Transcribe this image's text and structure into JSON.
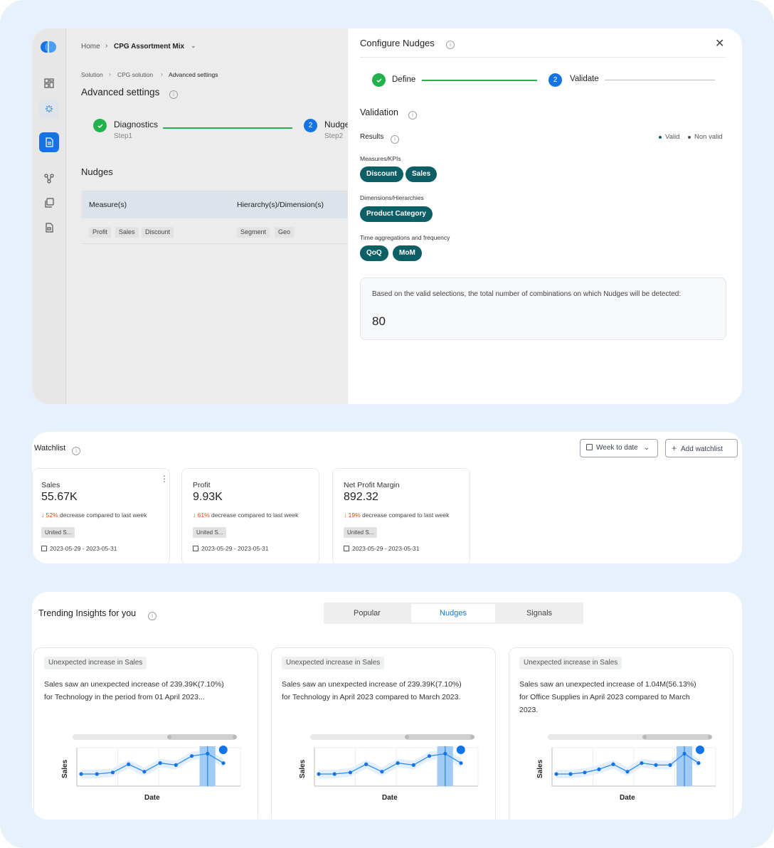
{
  "advanced": {
    "home": "Home",
    "project": "CPG Assortment Mix",
    "breadcrumb": [
      "Solution",
      "CPG solution",
      "Advanced settings"
    ],
    "page_title": "Advanced settings",
    "step1_title": "Diagnostics",
    "step1_sub": "Step1",
    "step2_title": "Nudge",
    "step2_num": "2",
    "step2_sub": "Step2",
    "section_title": "Nudges",
    "col_measure": "Measure(s)",
    "col_hier": "Hierarchy(s)/Dimension(s)",
    "measures": [
      "Profit",
      "Sales",
      "Discount"
    ],
    "dimensions": [
      "Segment",
      "Geo"
    ]
  },
  "drawer": {
    "title": "Configure Nudges",
    "step1": "Define",
    "step2_num": "2",
    "step2": "Validate",
    "validation_title": "Validation",
    "results_label": "Results",
    "legend_valid": "Valid",
    "legend_nonvalid": "Non valid",
    "measures_label": "Measures/KPIs",
    "measures": [
      "Discount",
      "Sales"
    ],
    "dimensions_label": "Dimensions/Hierarchies",
    "dimensions": [
      "Product Category"
    ],
    "time_label": "Time aggregations and frequency",
    "time": [
      "QoQ",
      "MoM"
    ],
    "summary_text": "Based on the valid selections, the total number of combinations on which Nudges will be detected:",
    "summary_value": "80",
    "colors": {
      "pill": "#0d5f66",
      "accent": "#1474e6",
      "success": "#22b14c"
    }
  },
  "watchlist": {
    "title": "Watchlist",
    "range_button": "Week to date",
    "add_button": "Add watchlist",
    "cards": [
      {
        "label": "Sales",
        "value": "55.67K",
        "pct": "52%",
        "change": "decrease compared to last week",
        "region": "United S...",
        "dates": "2023-05-29 - 2023-05-31"
      },
      {
        "label": "Profit",
        "value": "9.93K",
        "pct": "61%",
        "change": "decrease compared to last week",
        "region": "United S...",
        "dates": "2023-05-29 - 2023-05-31"
      },
      {
        "label": "Net Profit Margin",
        "value": "892.32",
        "pct": "19%",
        "change": "decrease compared to last week",
        "region": "United S...",
        "dates": "2023-05-29 - 2023-05-31"
      }
    ]
  },
  "trending": {
    "title": "Trending Insights for you",
    "tabs": [
      "Popular",
      "Nudges",
      "Signals"
    ],
    "active_tab": "Nudges",
    "cards": [
      {
        "tag": "Unexpected increase in Sales",
        "line1": "Sales saw an unexpected increase of 239.39K(7.10%)",
        "line2": "for Technology in the period from 01 April 2023...",
        "line3": ""
      },
      {
        "tag": "Unexpected increase in Sales",
        "line1": "Sales saw an unexpected increase of 239.39K(7.10%)",
        "line2": "for Technology in April 2023 compared to March 2023.",
        "line3": ""
      },
      {
        "tag": "Unexpected increase in Sales",
        "line1": "Sales saw an unexpected increase of 1.04M(56.13%)",
        "line2": "for Office Supplies in April 2023 compared to March",
        "line3": "2023."
      }
    ]
  },
  "chart_data": [
    {
      "type": "line",
      "xlabel": "Date",
      "ylabel": "Sales",
      "y": [
        2,
        2,
        2.4,
        4.5,
        2.6,
        4.8,
        4.3,
        6.6,
        7.2,
        4.8
      ],
      "highlight_index": 8
    },
    {
      "type": "line",
      "xlabel": "Date",
      "ylabel": "Sales",
      "y": [
        2,
        2,
        2.4,
        4.5,
        2.6,
        4.8,
        4.3,
        6.6,
        7.2,
        4.8
      ],
      "highlight_index": 8
    },
    {
      "type": "line",
      "xlabel": "Date",
      "ylabel": "Sales",
      "y": [
        2,
        2,
        2.4,
        3.2,
        4.5,
        2.6,
        4.8,
        4.3,
        4.3,
        7.2,
        4.8
      ],
      "highlight_index": 9
    }
  ]
}
